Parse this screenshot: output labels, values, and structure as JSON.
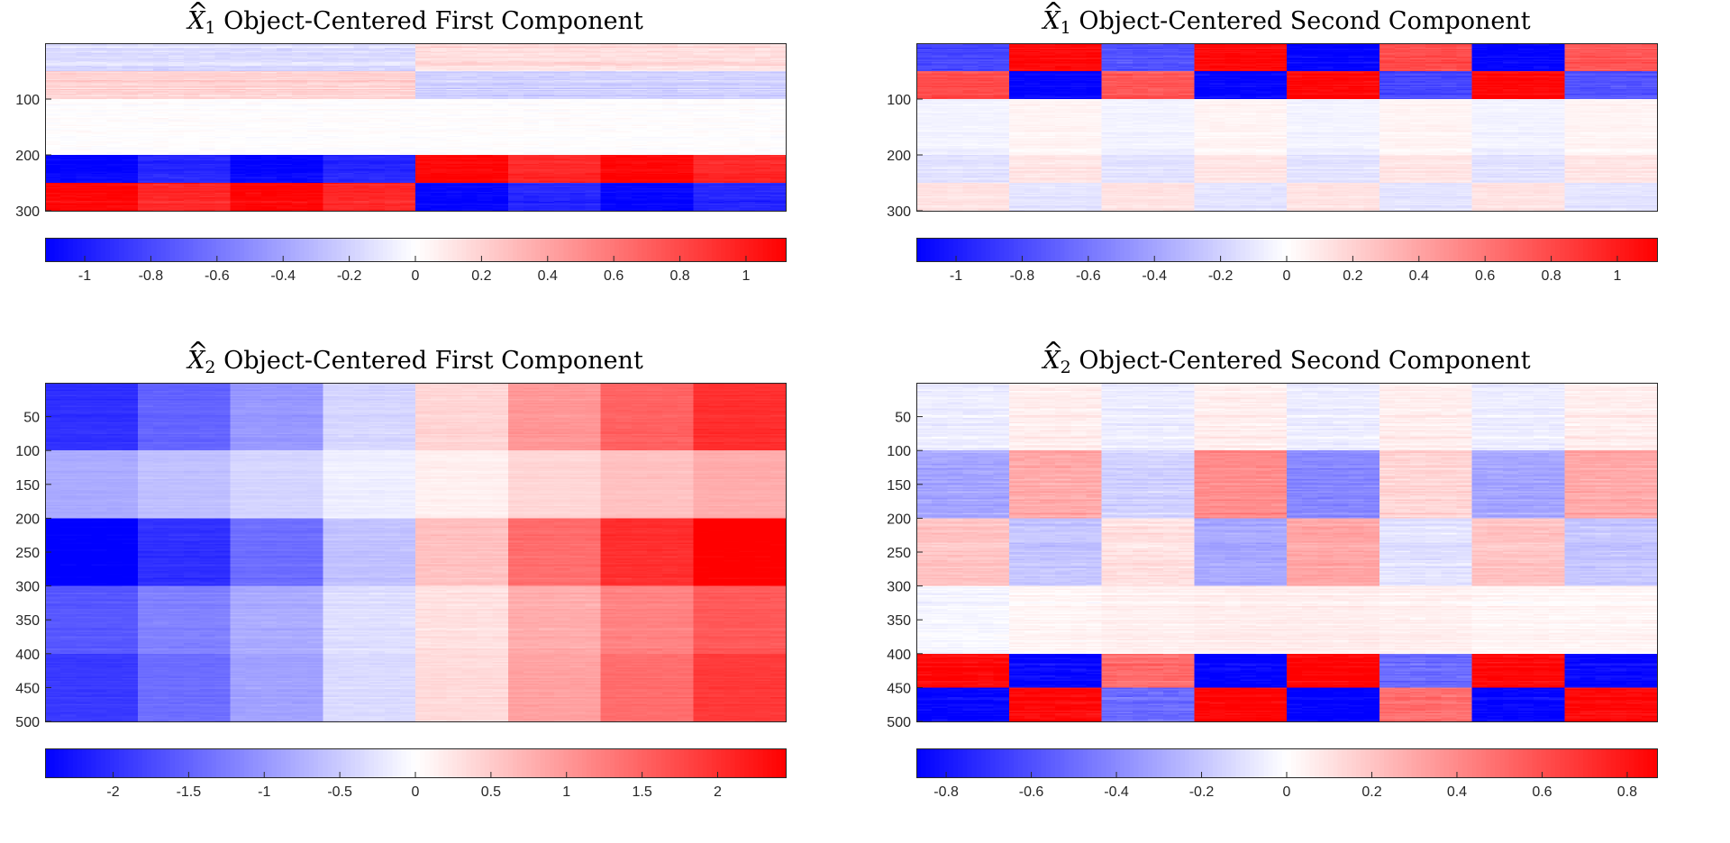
{
  "chart_data": [
    {
      "type": "heatmap",
      "title": "X̂1 Object-Centered First Component",
      "title_symbol": "X",
      "title_subscript": "1",
      "title_rest": "Object-Centered First Component",
      "rows": 300,
      "cols": 8,
      "ylim": [
        0,
        300
      ],
      "yticks": [
        100,
        200,
        300
      ],
      "colorbar": {
        "min": -1.12,
        "max": 1.12,
        "ticks": [
          -1,
          -0.8,
          -0.6,
          -0.4,
          -0.2,
          0,
          0.2,
          0.4,
          0.6,
          0.8,
          1
        ]
      },
      "colormap": [
        "#0000ff",
        "#ffffff",
        "#ff0000"
      ],
      "row_blocks": [
        {
          "rows": [
            0,
            50
          ],
          "values": [
            -0.15,
            -0.15,
            -0.15,
            -0.15,
            0.15,
            0.15,
            0.15,
            0.15
          ],
          "noise": 0.12
        },
        {
          "rows": [
            50,
            100
          ],
          "values": [
            0.2,
            0.2,
            0.2,
            0.2,
            -0.2,
            -0.2,
            -0.2,
            -0.2
          ],
          "noise": 0.12
        },
        {
          "rows": [
            100,
            200
          ],
          "values": [
            0.0,
            0.0,
            0.0,
            0.0,
            0.0,
            0.0,
            0.0,
            0.0
          ],
          "noise": 0.06
        },
        {
          "rows": [
            200,
            250
          ],
          "values": [
            -1.1,
            -0.95,
            -1.1,
            -0.95,
            1.1,
            0.95,
            1.1,
            0.95
          ],
          "noise": 0.12
        },
        {
          "rows": [
            250,
            300
          ],
          "values": [
            1.1,
            0.95,
            1.1,
            0.95,
            -1.1,
            -0.95,
            -1.1,
            -0.95
          ],
          "noise": 0.12
        }
      ]
    },
    {
      "type": "heatmap",
      "title": "X̂1 Object-Centered Second Component",
      "title_symbol": "X",
      "title_subscript": "1",
      "title_rest": "Object-Centered Second Component",
      "rows": 300,
      "cols": 8,
      "ylim": [
        0,
        300
      ],
      "yticks": [
        100,
        200,
        300
      ],
      "colorbar": {
        "min": -1.12,
        "max": 1.12,
        "ticks": [
          -1,
          -0.8,
          -0.6,
          -0.4,
          -0.2,
          0,
          0.2,
          0.4,
          0.6,
          0.8,
          1
        ]
      },
      "colormap": [
        "#0000ff",
        "#ffffff",
        "#ff0000"
      ],
      "row_blocks": [
        {
          "rows": [
            0,
            50
          ],
          "values": [
            -0.8,
            1.1,
            -0.75,
            1.1,
            -1.1,
            0.8,
            -1.1,
            0.75
          ],
          "noise": 0.15
        },
        {
          "rows": [
            50,
            100
          ],
          "values": [
            0.8,
            -1.1,
            0.75,
            -1.1,
            1.1,
            -0.8,
            1.1,
            -0.75
          ],
          "noise": 0.15
        },
        {
          "rows": [
            100,
            200
          ],
          "values": [
            -0.05,
            0.05,
            -0.05,
            0.05,
            -0.05,
            0.05,
            -0.05,
            0.05
          ],
          "noise": 0.06
        },
        {
          "rows": [
            200,
            250
          ],
          "values": [
            -0.12,
            0.12,
            -0.12,
            0.12,
            -0.12,
            0.12,
            -0.12,
            0.12
          ],
          "noise": 0.08
        },
        {
          "rows": [
            250,
            300
          ],
          "values": [
            0.12,
            -0.12,
            0.12,
            -0.12,
            0.12,
            -0.12,
            0.12,
            -0.12
          ],
          "noise": 0.08
        }
      ]
    },
    {
      "type": "heatmap",
      "title": "X̂2 Object-Centered First Component",
      "title_symbol": "X",
      "title_subscript": "2",
      "title_rest": "Object-Centered First Component",
      "rows": 500,
      "cols": 8,
      "ylim": [
        0,
        500
      ],
      "yticks": [
        50,
        100,
        150,
        200,
        250,
        300,
        350,
        400,
        450,
        500
      ],
      "colorbar": {
        "min": -2.45,
        "max": 2.45,
        "ticks": [
          -2,
          -1.5,
          -1,
          -0.5,
          0,
          0.5,
          1,
          1.5,
          2
        ]
      },
      "colormap": [
        "#0000ff",
        "#ffffff",
        "#ff0000"
      ],
      "row_blocks": [
        {
          "rows": [
            0,
            100
          ],
          "values": [
            -2.0,
            -1.5,
            -1.0,
            -0.4,
            0.4,
            1.0,
            1.5,
            2.0
          ],
          "noise": 0.15
        },
        {
          "rows": [
            100,
            200
          ],
          "values": [
            -0.8,
            -0.6,
            -0.4,
            -0.15,
            0.15,
            0.4,
            0.6,
            0.8
          ],
          "noise": 0.1
        },
        {
          "rows": [
            200,
            300
          ],
          "values": [
            -2.5,
            -2.0,
            -1.4,
            -0.6,
            0.6,
            1.4,
            2.0,
            2.5
          ],
          "noise": 0.15
        },
        {
          "rows": [
            300,
            400
          ],
          "values": [
            -1.6,
            -1.2,
            -0.8,
            -0.3,
            0.3,
            0.8,
            1.2,
            1.6
          ],
          "noise": 0.15
        },
        {
          "rows": [
            400,
            500
          ],
          "values": [
            -1.9,
            -1.4,
            -0.9,
            -0.35,
            0.35,
            0.9,
            1.4,
            1.9
          ],
          "noise": 0.15
        }
      ]
    },
    {
      "type": "heatmap",
      "title": "X̂2 Object-Centered Second Component",
      "title_symbol": "X",
      "title_subscript": "2",
      "title_rest": "Object-Centered Second Component",
      "rows": 500,
      "cols": 8,
      "ylim": [
        0,
        500
      ],
      "yticks": [
        50,
        100,
        150,
        200,
        250,
        300,
        350,
        400,
        450,
        500
      ],
      "colorbar": {
        "min": -0.87,
        "max": 0.87,
        "ticks": [
          -0.8,
          -0.6,
          -0.4,
          -0.2,
          0,
          0.2,
          0.4,
          0.6,
          0.8
        ]
      },
      "colormap": [
        "#0000ff",
        "#ffffff",
        "#ff0000"
      ],
      "row_blocks": [
        {
          "rows": [
            0,
            100
          ],
          "values": [
            -0.06,
            0.06,
            -0.06,
            0.06,
            -0.06,
            0.06,
            -0.06,
            0.06
          ],
          "noise": 0.07
        },
        {
          "rows": [
            100,
            200
          ],
          "values": [
            -0.3,
            0.3,
            -0.15,
            0.4,
            -0.4,
            0.15,
            -0.3,
            0.3
          ],
          "noise": 0.09
        },
        {
          "rows": [
            200,
            300
          ],
          "values": [
            0.2,
            -0.2,
            0.1,
            -0.3,
            0.3,
            -0.1,
            0.2,
            -0.2
          ],
          "noise": 0.08
        },
        {
          "rows": [
            300,
            400
          ],
          "values": [
            -0.03,
            0.03,
            0.05,
            0.06,
            0.06,
            0.05,
            0.03,
            0.03
          ],
          "noise": 0.06
        },
        {
          "rows": [
            400,
            450
          ],
          "values": [
            0.85,
            -0.85,
            0.5,
            -0.87,
            0.87,
            -0.5,
            0.85,
            -0.85
          ],
          "noise": 0.12
        },
        {
          "rows": [
            450,
            500
          ],
          "values": [
            -0.85,
            0.85,
            -0.5,
            0.87,
            -0.87,
            0.5,
            -0.85,
            0.85
          ],
          "noise": 0.12
        }
      ]
    }
  ]
}
